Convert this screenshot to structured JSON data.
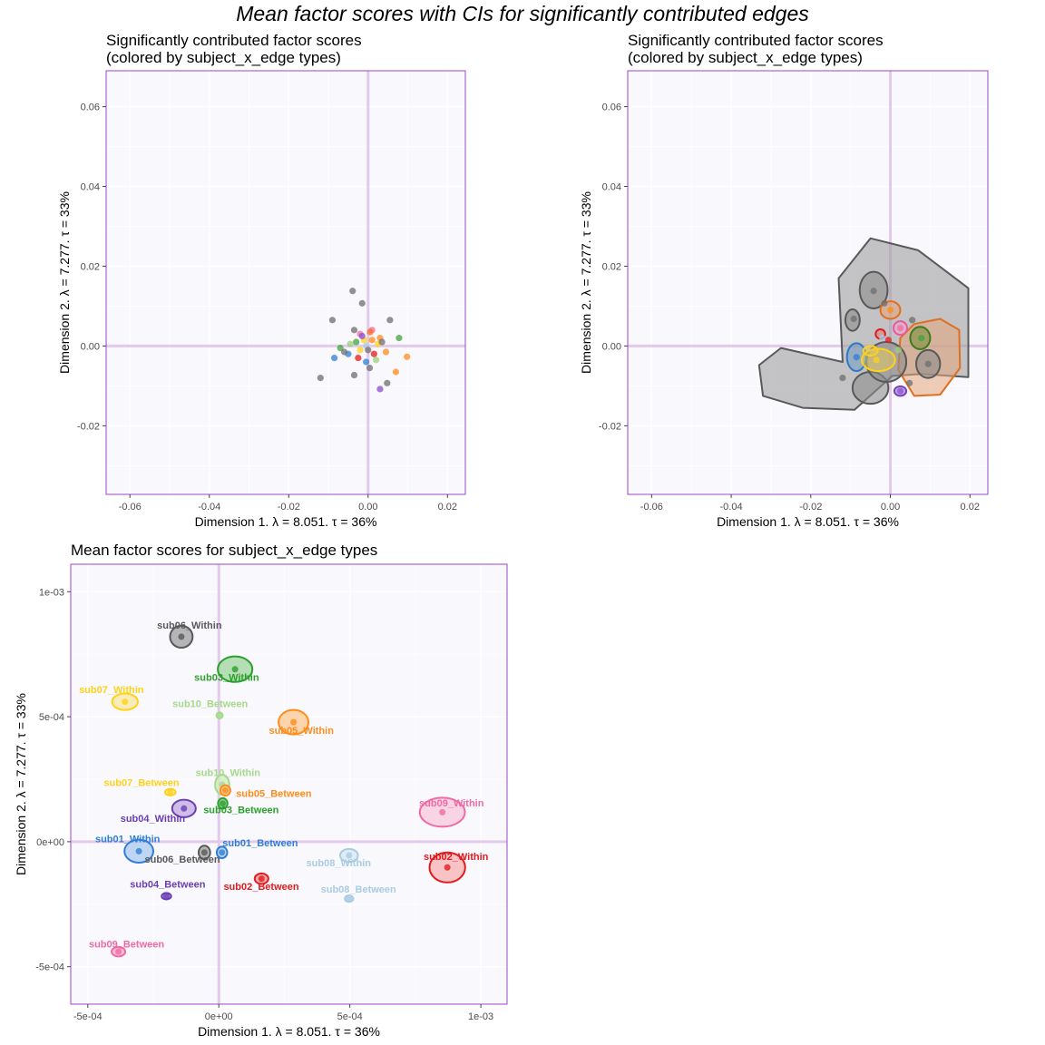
{
  "main_title": "Mean factor scores with CIs for significantly contributed edges",
  "colors": {
    "panel_bg": "#f9f8fd",
    "frame": "#9c45c9",
    "zero_line": "#e3c9ec",
    "grid": "#ffffff"
  },
  "chart_data": [
    {
      "type": "scatter",
      "title": "Significantly contributed factor scores\n(colored by subject_x_edge types)",
      "xlabel": "Dimension 1.   λ = 8.051.  τ = 36%",
      "ylabel": "Dimension 2.   λ = 7.277.  τ = 33%",
      "xlim": [
        -0.066,
        0.0245
      ],
      "ylim": [
        -0.0372,
        0.069
      ],
      "xticks": [
        -0.06,
        -0.04,
        -0.02,
        0.0,
        0.02
      ],
      "xtick_labels": [
        "-0.06",
        "-0.04",
        "-0.02",
        "0.00",
        "0.02"
      ],
      "yticks": [
        -0.02,
        0.0,
        0.02,
        0.04,
        0.06
      ],
      "ytick_labels": [
        "-0.02",
        "0.00",
        "0.02",
        "0.04",
        "0.06"
      ],
      "grid": true,
      "points": [
        {
          "x": -0.0039,
          "y": 0.0138,
          "c": "#6e6e6e"
        },
        {
          "x": -0.0015,
          "y": 0.0107,
          "c": "#6e6e6e"
        },
        {
          "x": -0.009,
          "y": 0.0065,
          "c": "#6e6e6e"
        },
        {
          "x": 0.0055,
          "y": 0.0065,
          "c": "#6e6e6e"
        },
        {
          "x": -0.012,
          "y": -0.008,
          "c": "#6e6e6e"
        },
        {
          "x": 0.0048,
          "y": -0.0093,
          "c": "#6e6e6e"
        },
        {
          "x": 0.0004,
          "y": -0.0055,
          "c": "#6e6e6e"
        },
        {
          "x": -0.0035,
          "y": -0.0073,
          "c": "#6e6e6e"
        },
        {
          "x": 0.0098,
          "y": -0.0027,
          "c": "#ff8c1a"
        },
        {
          "x": 0.007,
          "y": -0.0065,
          "c": "#ff8c1a"
        },
        {
          "x": 0.003,
          "y": 0.002,
          "c": "#ff8c1a"
        },
        {
          "x": 0.0045,
          "y": -0.0015,
          "c": "#ff8c1a"
        },
        {
          "x": 0.0078,
          "y": 0.002,
          "c": "#3fa33f"
        },
        {
          "x": -0.007,
          "y": -0.0005,
          "c": "#3fa33f"
        },
        {
          "x": -0.003,
          "y": 0.001,
          "c": "#3fa33f"
        },
        {
          "x": 0.003,
          "y": -0.0108,
          "c": "#8a4fd0"
        },
        {
          "x": -0.005,
          "y": -0.002,
          "c": "#2f7fd6"
        },
        {
          "x": -0.0005,
          "y": -0.004,
          "c": "#2f7fd6"
        },
        {
          "x": -0.0085,
          "y": -0.003,
          "c": "#2f7fd6"
        },
        {
          "x": -0.002,
          "y": 0.003,
          "c": "#f06aa6"
        },
        {
          "x": 0.001,
          "y": 0.004,
          "c": "#f06aa6"
        },
        {
          "x": -0.002,
          "y": -0.001,
          "c": "#ffd21a"
        },
        {
          "x": 0.0025,
          "y": 0.0005,
          "c": "#ffd21a"
        },
        {
          "x": -0.001,
          "y": 0.0015,
          "c": "#ffd21a"
        },
        {
          "x": 0.0005,
          "y": 0.0035,
          "c": "#ff6a1a"
        },
        {
          "x": -0.0025,
          "y": -0.003,
          "c": "#e31a1c"
        },
        {
          "x": 0.0015,
          "y": -0.002,
          "c": "#e31a1c"
        },
        {
          "x": -0.0045,
          "y": 0.0005,
          "c": "#9ad07a"
        },
        {
          "x": 0.002,
          "y": -0.0035,
          "c": "#9ad07a"
        },
        {
          "x": -0.0005,
          "y": 0.0,
          "c": "#a9cce3"
        },
        {
          "x": -0.0035,
          "y": 0.004,
          "c": "#6e6e6e"
        },
        {
          "x": 0.0,
          "y": -0.001,
          "c": "#6e6e6e"
        },
        {
          "x": 0.0035,
          "y": 0.001,
          "c": "#6e6e6e"
        },
        {
          "x": -0.006,
          "y": -0.0015,
          "c": "#6e6e6e"
        },
        {
          "x": 0.001,
          "y": 0.0015,
          "c": "#ff8c1a"
        },
        {
          "x": -0.0015,
          "y": 0.0025,
          "c": "#8a4fd0"
        }
      ]
    },
    {
      "type": "scatter",
      "title": "Significantly contributed factor scores\n(colored by subject_x_edge types)",
      "xlabel": "Dimension 1.   λ = 8.051.  τ = 36%",
      "ylabel": "Dimension 2.   λ = 7.277.  τ = 33%",
      "xlim": [
        -0.066,
        0.0245
      ],
      "ylim": [
        -0.0372,
        0.069
      ],
      "xticks": [
        -0.06,
        -0.04,
        -0.02,
        0.0,
        0.02
      ],
      "xtick_labels": [
        "-0.06",
        "-0.04",
        "-0.02",
        "0.00",
        "0.02"
      ],
      "yticks": [
        -0.02,
        0.0,
        0.02,
        0.04,
        0.06
      ],
      "ytick_labels": [
        "-0.02",
        "0.00",
        "0.02",
        "0.04",
        "0.06"
      ],
      "grid": true,
      "hulls": [
        {
          "c": "#595959",
          "fill": "#9e9e9e",
          "op": 0.6,
          "pts": [
            [
              -0.012,
              -0.004
            ],
            [
              -0.013,
              0.017
            ],
            [
              -0.005,
              0.027
            ],
            [
              0.007,
              0.024
            ],
            [
              0.0196,
              0.0145
            ],
            [
              0.0196,
              -0.0078
            ],
            [
              0.008,
              -0.007
            ],
            [
              0.0005,
              -0.0075
            ],
            [
              -0.009,
              -0.016
            ],
            [
              -0.022,
              -0.0155
            ],
            [
              -0.032,
              -0.0125
            ],
            [
              -0.033,
              -0.0048
            ],
            [
              -0.0275,
              -0.0005
            ]
          ]
        },
        {
          "c": "#e0701f",
          "fill": "#e4a57c",
          "op": 0.55,
          "pts": [
            [
              0.006,
              0.0055
            ],
            [
              0.0125,
              0.0068
            ],
            [
              0.0173,
              0.004
            ],
            [
              0.0175,
              -0.0055
            ],
            [
              0.0125,
              -0.0122
            ],
            [
              0.006,
              -0.0125
            ],
            [
              0.002,
              -0.006
            ],
            [
              0.0025,
              0.002
            ]
          ]
        },
        {
          "c": "#595959",
          "fill": "#8e8e8e",
          "op": 0.6,
          "ellipse": [
            -0.0042,
            0.014,
            0.0035,
            0.0046
          ]
        },
        {
          "c": "#595959",
          "fill": "#8e8e8e",
          "op": 0.6,
          "ellipse": [
            -0.0095,
            0.0065,
            0.0018,
            0.0027
          ]
        },
        {
          "c": "#595959",
          "fill": "#8e8e8e",
          "op": 0.6,
          "ellipse": [
            0.0095,
            -0.0045,
            0.003,
            0.0035
          ]
        },
        {
          "c": "#595959",
          "fill": "#8e8e8e",
          "op": 0.6,
          "ellipse": [
            -0.005,
            -0.0105,
            0.0045,
            0.004
          ]
        },
        {
          "c": "#595959",
          "fill": "#8e8e8e",
          "op": 0.6,
          "ellipse": [
            -0.001,
            -0.004,
            0.005,
            0.005
          ]
        },
        {
          "c": "#3d7a1e",
          "fill": "#7d8f3e",
          "op": 0.6,
          "ellipse": [
            0.0075,
            0.002,
            0.0025,
            0.0028
          ]
        },
        {
          "c": "#e0701f",
          "fill": "#e4a57c",
          "op": 0.55,
          "ellipse": [
            0.0,
            0.009,
            0.0025,
            0.0022
          ]
        },
        {
          "c": "#2d78c8",
          "fill": "#6f9bc2",
          "op": 0.55,
          "ellipse": [
            -0.0085,
            -0.0028,
            0.0024,
            0.0035
          ]
        },
        {
          "c": "#ffd21a",
          "fill": "#e8c95a",
          "op": 0.5,
          "ellipse": [
            -0.003,
            -0.0035,
            0.0042,
            0.0028
          ]
        },
        {
          "c": "#ffd21a",
          "fill": "#e8c95a",
          "op": 0.5,
          "ellipse": [
            -0.005,
            -0.0012,
            0.0018,
            0.0012
          ]
        },
        {
          "c": "#e85aa0",
          "fill": "#f2a3c8",
          "op": 0.6,
          "ellipse": [
            0.0025,
            0.0045,
            0.0017,
            0.0017
          ]
        },
        {
          "c": "#7a3fbf",
          "fill": "#a07ad0",
          "op": 0.6,
          "ellipse": [
            0.0025,
            -0.0113,
            0.0015,
            0.0012
          ]
        },
        {
          "c": "#e31a1c",
          "fill": "#e47a7a",
          "op": 0.55,
          "ellipse": [
            -0.0025,
            0.003,
            0.0012,
            0.0012
          ]
        }
      ],
      "points": [
        {
          "x": -0.0042,
          "y": 0.0138,
          "c": "#6e6e6e"
        },
        {
          "x": -0.0015,
          "y": 0.0107,
          "c": "#6e6e6e"
        },
        {
          "x": -0.0092,
          "y": 0.0068,
          "c": "#6e6e6e"
        },
        {
          "x": 0.0055,
          "y": 0.0065,
          "c": "#6e6e6e"
        },
        {
          "x": -0.012,
          "y": -0.008,
          "c": "#6e6e6e"
        },
        {
          "x": 0.0048,
          "y": -0.0093,
          "c": "#6e6e6e"
        },
        {
          "x": 0.0095,
          "y": -0.0045,
          "c": "#6e6e6e"
        },
        {
          "x": 0.0078,
          "y": 0.002,
          "c": "#3fa33f"
        },
        {
          "x": 0.0,
          "y": 0.009,
          "c": "#ff8c1a"
        },
        {
          "x": 0.0025,
          "y": 0.0045,
          "c": "#f06aa6"
        },
        {
          "x": -0.0035,
          "y": -0.0035,
          "c": "#ffd21a"
        },
        {
          "x": -0.0085,
          "y": -0.0028,
          "c": "#2f7fd6"
        },
        {
          "x": 0.0025,
          "y": -0.0113,
          "c": "#8a4fd0"
        },
        {
          "x": -0.0005,
          "y": 0.0015,
          "c": "#e31a1c"
        },
        {
          "x": 0.002,
          "y": -0.001,
          "c": "#9ad07a"
        },
        {
          "x": -0.002,
          "y": 0.002,
          "c": "#a9cce3"
        }
      ]
    },
    {
      "type": "scatter",
      "title": "Mean factor scores for subject_x_edge types",
      "xlabel": "Dimension 1.   λ = 8.051.  τ = 36%",
      "ylabel": "Dimension 2.   λ = 7.277.  τ = 33%",
      "xlim": [
        -0.000565,
        0.0011
      ],
      "ylim": [
        -0.00065,
        0.00111
      ],
      "xticks": [
        -0.0005,
        0.0,
        0.0005,
        0.001
      ],
      "xtick_labels": [
        "-5e-04",
        "0e+00",
        "5e-04",
        "1e-03"
      ],
      "yticks": [
        -0.0005,
        0.0,
        0.0005,
        0.001
      ],
      "ytick_labels": [
        "-5e-04",
        "0e+00",
        "5e-04",
        "1e-03"
      ],
      "grid": true,
      "groups": [
        {
          "label": "sub06_Within",
          "x": -0.000143,
          "y": 0.00082,
          "rx": 4.3e-05,
          "ry": 4.4e-05,
          "c": "#595959",
          "fill": "#9e9e9e",
          "lx": -0.000112,
          "ly": 0.000853
        },
        {
          "label": "sub03_Within",
          "x": 6.2e-05,
          "y": 0.00069,
          "rx": 6.6e-05,
          "ry": 5.1e-05,
          "c": "#2ca02c",
          "fill": "#9ed49e",
          "lx": 3e-05,
          "ly": 0.000643
        },
        {
          "label": "sub07_Within",
          "x": -0.000358,
          "y": 0.00056,
          "rx": 4.9e-05,
          "ry": 3.3e-05,
          "c": "#ffd21a",
          "fill": "#f8e8a0",
          "lx": -0.00041,
          "ly": 0.000594
        },
        {
          "label": "sub10_Between",
          "x": 3e-06,
          "y": 0.000505,
          "rx": 1.2e-05,
          "ry": 1.2e-05,
          "c": "#a6d98a",
          "fill": "#c8e8b4",
          "lx": -3.3e-05,
          "ly": 0.000539
        },
        {
          "label": "sub05_Within",
          "x": 0.000285,
          "y": 0.000478,
          "rx": 5.7e-05,
          "ry": 4.9e-05,
          "c": "#ff8c1a",
          "fill": "#ffc890",
          "lx": 0.000315,
          "ly": 0.000432
        },
        {
          "label": "sub10_Within",
          "x": 1.3e-05,
          "y": 0.000228,
          "rx": 2.7e-05,
          "ry": 4e-05,
          "c": "#a6d98a",
          "fill": "#d2ecc2",
          "lx": 3.5e-05,
          "ly": 0.000262
        },
        {
          "label": "sub07_Between",
          "x": -0.000185,
          "y": 0.000198,
          "rx": 2e-05,
          "ry": 1.3e-05,
          "c": "#ffd21a",
          "fill": "#f8e8a0",
          "lx": -0.000295,
          "ly": 0.000223
        },
        {
          "label": "sub05_Between",
          "x": 2.5e-05,
          "y": 0.000205,
          "rx": 1.9e-05,
          "ry": 2.1e-05,
          "c": "#ff8c1a",
          "fill": "#ffc890",
          "lx": 0.00021,
          "ly": 0.000179
        },
        {
          "label": "sub03_Between",
          "x": 1.5e-05,
          "y": 0.000153,
          "rx": 1.8e-05,
          "ry": 2.1e-05,
          "c": "#2ca02c",
          "fill": "#7fc67f",
          "lx": 8.5e-05,
          "ly": 0.000113
        },
        {
          "label": "sub04_Within",
          "x": -0.000133,
          "y": 0.000133,
          "rx": 4.5e-05,
          "ry": 3.5e-05,
          "c": "#6a3fb4",
          "fill": "#c0a8e0",
          "lx": -0.000252,
          "ly": 7.9e-05
        },
        {
          "label": "sub09_Within",
          "x": 0.000853,
          "y": 0.000118,
          "rx": 8.6e-05,
          "ry": 5.8e-05,
          "c": "#f06aa6",
          "fill": "#f8c8dc",
          "lx": 0.000888,
          "ly": 0.000142
        },
        {
          "label": "sub01_Within",
          "x": -0.000305,
          "y": -3.8e-05,
          "rx": 5.5e-05,
          "ry": 4.6e-05,
          "c": "#2f7fd6",
          "fill": "#a9cbec",
          "lx": -0.000348,
          "ly": -3e-06
        },
        {
          "label": "sub06_Between",
          "x": -5.5e-05,
          "y": -4.3e-05,
          "rx": 2.2e-05,
          "ry": 2.7e-05,
          "c": "#595959",
          "fill": "#9e9e9e",
          "lx": -0.000139,
          "ly": -8.3e-05
        },
        {
          "label": "sub01_Between",
          "x": 1.2e-05,
          "y": -4.3e-05,
          "rx": 2e-05,
          "ry": 2.3e-05,
          "c": "#2f7fd6",
          "fill": "#a9cbec",
          "lx": 0.000158,
          "ly": -1.8e-05
        },
        {
          "label": "sub08_Within",
          "x": 0.000497,
          "y": -5.5e-05,
          "rx": 3.4e-05,
          "ry": 2.6e-05,
          "c": "#a9cce3",
          "fill": "#d8e8f4",
          "lx": 0.000457,
          "ly": -9.8e-05
        },
        {
          "label": "sub02_Within",
          "x": 0.000872,
          "y": -0.000103,
          "rx": 6.8e-05,
          "ry": 6e-05,
          "c": "#e31a1c",
          "fill": "#f8b0b0",
          "lx": 0.000905,
          "ly": -7.3e-05
        },
        {
          "label": "sub02_Between",
          "x": 0.000163,
          "y": -0.000148,
          "rx": 2.6e-05,
          "ry": 2.1e-05,
          "c": "#e31a1c",
          "fill": "#f09090",
          "lx": 0.000162,
          "ly": -0.000193
        },
        {
          "label": "sub04_Between",
          "x": -0.0002,
          "y": -0.000218,
          "rx": 1.8e-05,
          "ry": 1.3e-05,
          "c": "#6a3fb4",
          "fill": "#a68ad0",
          "lx": -0.000195,
          "ly": -0.000183
        },
        {
          "label": "sub08_Between",
          "x": 0.000497,
          "y": -0.000228,
          "rx": 1.6e-05,
          "ry": 1.3e-05,
          "c": "#a9cce3",
          "fill": "#c8dcee",
          "lx": 0.000533,
          "ly": -0.000203
        },
        {
          "label": "sub09_Between",
          "x": -0.000383,
          "y": -0.00044,
          "rx": 2.6e-05,
          "ry": 1.9e-05,
          "c": "#f06aa6",
          "fill": "#f8a8c8",
          "lx": -0.000352,
          "ly": -0.000423
        }
      ]
    }
  ]
}
